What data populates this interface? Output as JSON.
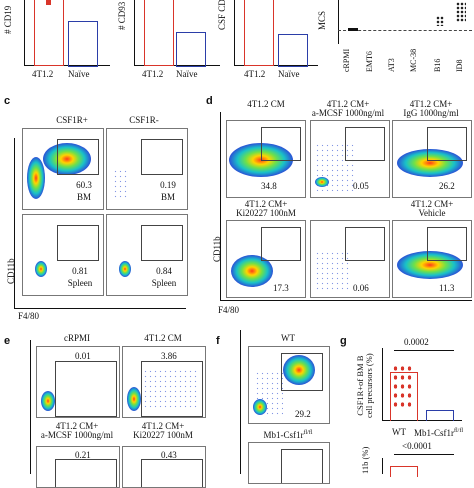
{
  "panel_labels": {
    "c": "c",
    "d": "d",
    "e": "e",
    "f": "f",
    "g": "g"
  },
  "top_row": {
    "bar1_ylabel": "# CD19",
    "bar2_ylabel": "# CD93",
    "bar3_ylabel": "CSF\nCD93",
    "bar_xlabels": [
      "4T1.2",
      "Naïve"
    ],
    "mcs_ylabel": "MCS",
    "scatter_xlabels": [
      "cRPMI",
      "EMT6",
      "AT3",
      "MC-38",
      "B16",
      "ID8"
    ]
  },
  "panel_c": {
    "col_titles": [
      "CSF1R+",
      "CSF1R-"
    ],
    "plots": [
      {
        "pct": "60.3",
        "tissue": "BM"
      },
      {
        "pct": "0.19",
        "tissue": "BM"
      },
      {
        "pct": "0.81",
        "tissue": "Spleen"
      },
      {
        "pct": "0.84",
        "tissue": "Spleen"
      }
    ],
    "y_axis": "CD11b",
    "x_axis": "F4/80"
  },
  "panel_d": {
    "titles": [
      "4T1.2 CM",
      "4T1.2 CM+\na-MCSF 1000ng/ml",
      "4T1.2 CM+\nIgG 1000ng/ml",
      "4T1.2 CM+\nKi20227 100nM",
      "",
      "4T1.2 CM+\nVehicle"
    ],
    "pcts": [
      "34.8",
      "0.05",
      "26.2",
      "17.3",
      "0.06",
      "11.3"
    ],
    "y_axis": "CD11b",
    "x_axis": "F4/80"
  },
  "panel_e": {
    "titles": [
      "cRPMI",
      "4T1.2 CM",
      "4T1.2 CM+\na-MCSF 1000ng/ml",
      "4T1.2 CM+\nKi20227 100nM"
    ],
    "pcts": [
      "0.01",
      "3.86",
      "0.21",
      "0.43"
    ]
  },
  "panel_f": {
    "titles": [
      "WT",
      "Mb1-Csf1r"
    ],
    "title2_sup": "fl/fl",
    "pcts": [
      "29.2"
    ]
  },
  "panel_g": {
    "ylabel": "CSF1R+of BM B\ncell precursors (%)",
    "pval_top": "0.0002",
    "pval_bottom": "<0.0001",
    "xlabels": [
      "WT",
      "Mb1-Csf1r"
    ],
    "xlabel2_sup": "fl/fl",
    "ylabel2": "11b (%)"
  },
  "colors": {
    "bar_red": "#d9352a",
    "bar_blue": "#2b3ea8",
    "pop_high": "#ff3a1a",
    "pop_low": "#2a55d6"
  }
}
